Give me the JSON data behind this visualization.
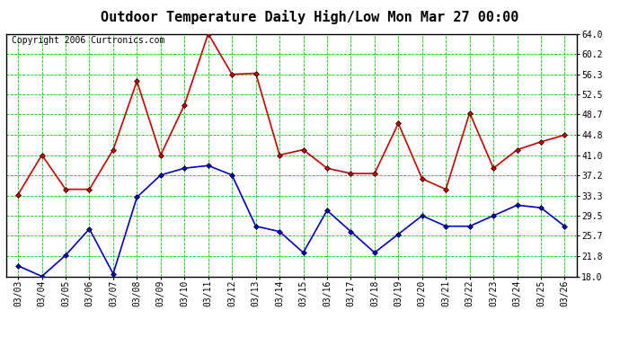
{
  "title": "Outdoor Temperature Daily High/Low Mon Mar 27 00:00",
  "copyright": "Copyright 2006 Curtronics.com",
  "dates": [
    "03/03",
    "03/04",
    "03/05",
    "03/06",
    "03/07",
    "03/08",
    "03/09",
    "03/10",
    "03/11",
    "03/12",
    "03/13",
    "03/14",
    "03/15",
    "03/16",
    "03/17",
    "03/18",
    "03/19",
    "03/20",
    "03/21",
    "03/22",
    "03/23",
    "03/24",
    "03/25",
    "03/26"
  ],
  "high_temps": [
    33.5,
    41.0,
    34.5,
    34.5,
    42.0,
    55.0,
    41.0,
    50.5,
    64.0,
    56.3,
    56.5,
    41.0,
    42.0,
    38.5,
    37.5,
    37.5,
    47.0,
    36.5,
    34.5,
    49.0,
    38.5,
    42.0,
    43.5,
    44.8
  ],
  "low_temps": [
    20.0,
    18.0,
    22.0,
    27.0,
    18.5,
    33.0,
    37.2,
    38.5,
    39.0,
    37.2,
    27.5,
    26.5,
    22.5,
    30.5,
    26.5,
    22.5,
    26.0,
    29.5,
    27.5,
    27.5,
    29.5,
    31.5,
    31.0,
    27.5
  ],
  "high_color": "#cc0000",
  "low_color": "#0000cc",
  "bg_color": "#ffffff",
  "plot_bg_color": "#ffffff",
  "grid_color": "#00cc00",
  "border_color": "#000000",
  "title_color": "#000000",
  "yticks": [
    18.0,
    21.8,
    25.7,
    29.5,
    33.3,
    37.2,
    41.0,
    44.8,
    48.7,
    52.5,
    56.3,
    60.2,
    64.0
  ],
  "ymin": 18.0,
  "ymax": 64.0,
  "marker": "D",
  "marker_size": 3,
  "line_width": 1.2,
  "title_fontsize": 11,
  "tick_fontsize": 7,
  "copyright_fontsize": 7
}
